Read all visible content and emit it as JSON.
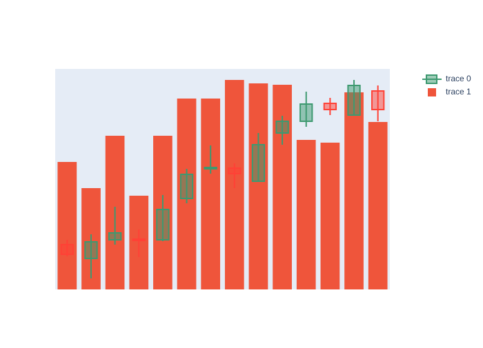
{
  "chart_data": {
    "type": "candlestick-bar",
    "ylim": [
      0,
      32
    ],
    "plot_bg": "#e5ecf6",
    "series": [
      {
        "name": "trace 0",
        "type": "candlestick",
        "increasing_color": "#3d9970",
        "decreasing_color": "#ff4136",
        "open": [
          6.5,
          4.5,
          7.2,
          7.3,
          7.2,
          13.2,
          17.5,
          17.6,
          15.7,
          22.7,
          24.4,
          27.0,
          25.3,
          28.8
        ],
        "high": [
          7.2,
          8.0,
          12.0,
          8.7,
          13.7,
          17.5,
          20.9,
          18.3,
          22.7,
          25.2,
          28.7,
          27.8,
          30.4,
          29.6
        ],
        "low": [
          4.8,
          1.6,
          6.5,
          4.7,
          7.0,
          12.5,
          16.8,
          14.7,
          15.7,
          21.0,
          23.6,
          25.3,
          25.3,
          24.4
        ],
        "close": [
          5.1,
          6.9,
          8.2,
          7.1,
          11.6,
          16.7,
          17.7,
          16.8,
          21.0,
          24.4,
          26.9,
          26.1,
          29.6,
          26.1
        ]
      },
      {
        "name": "trace 1",
        "type": "bar",
        "color": "#ef553b",
        "values": [
          18.5,
          14.7,
          22.3,
          13.6,
          22.3,
          27.7,
          27.7,
          30.4,
          29.9,
          29.7,
          21.7,
          21.3,
          28.6,
          24.3
        ]
      }
    ]
  }
}
